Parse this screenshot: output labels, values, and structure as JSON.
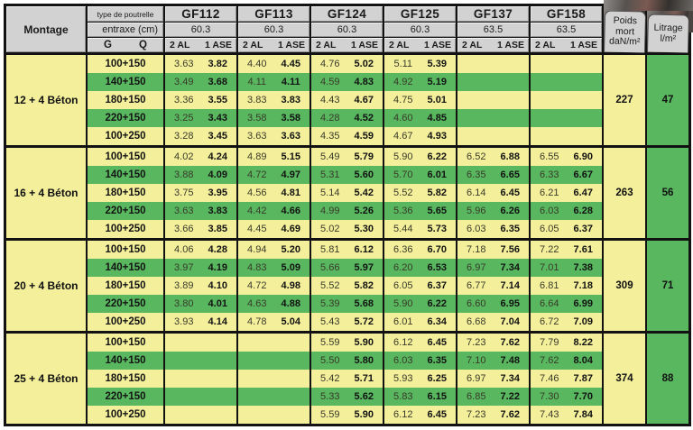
{
  "colors": {
    "row_yellow": "#f3ef9b",
    "row_green": "#58b75f",
    "header_gray": "#d2d2d2",
    "border_black": "#121212"
  },
  "header": {
    "montage": "Montage",
    "type_label": "type de poutrelle",
    "entraxe_label": "entraxe (cm)",
    "g": "G",
    "q": "Q",
    "col_2al": "2 AL",
    "col_1ase": "1 ASE",
    "groups": [
      {
        "name": "GF112",
        "entraxe": "60.3"
      },
      {
        "name": "GF113",
        "entraxe": "60.3"
      },
      {
        "name": "GF124",
        "entraxe": "60.3"
      },
      {
        "name": "GF125",
        "entraxe": "60.3"
      },
      {
        "name": "GF137",
        "entraxe": "63.5"
      },
      {
        "name": "GF158",
        "entraxe": "63.5"
      }
    ],
    "poids_lines": [
      "Poids",
      "mort",
      "daN/m²"
    ],
    "litrage_lines": [
      "Litrage",
      "l/m²"
    ]
  },
  "blocks": [
    {
      "montage": "12 + 4 Béton",
      "poids": "227",
      "litrage": "47",
      "rows": [
        {
          "label": "100+150",
          "cells": [
            [
              "3.63",
              "3.82"
            ],
            [
              "4.40",
              "4.45"
            ],
            [
              "4.76",
              "5.02"
            ],
            [
              "5.11",
              "5.39"
            ],
            null,
            null
          ]
        },
        {
          "label": "140+150",
          "cells": [
            [
              "3.49",
              "3.68"
            ],
            [
              "4.11",
              "4.11"
            ],
            [
              "4.59",
              "4.83"
            ],
            [
              "4.92",
              "5.19"
            ],
            null,
            null
          ]
        },
        {
          "label": "180+150",
          "cells": [
            [
              "3.36",
              "3.55"
            ],
            [
              "3.83",
              "3.83"
            ],
            [
              "4.43",
              "4.67"
            ],
            [
              "4.75",
              "5.01"
            ],
            null,
            null
          ]
        },
        {
          "label": "220+150",
          "cells": [
            [
              "3.25",
              "3.43"
            ],
            [
              "3.58",
              "3.58"
            ],
            [
              "4.28",
              "4.52"
            ],
            [
              "4.60",
              "4.85"
            ],
            null,
            null
          ]
        },
        {
          "label": "100+250",
          "cells": [
            [
              "3.28",
              "3.45"
            ],
            [
              "3.63",
              "3.63"
            ],
            [
              "4.35",
              "4.59"
            ],
            [
              "4.67",
              "4.93"
            ],
            null,
            null
          ]
        }
      ]
    },
    {
      "montage": "16 + 4 Béton",
      "poids": "263",
      "litrage": "56",
      "rows": [
        {
          "label": "100+150",
          "cells": [
            [
              "4.02",
              "4.24"
            ],
            [
              "4.89",
              "5.15"
            ],
            [
              "5.49",
              "5.79"
            ],
            [
              "5.90",
              "6.22"
            ],
            [
              "6.52",
              "6.88"
            ],
            [
              "6.55",
              "6.90"
            ]
          ]
        },
        {
          "label": "140+150",
          "cells": [
            [
              "3.88",
              "4.09"
            ],
            [
              "4.72",
              "4.97"
            ],
            [
              "5.31",
              "5.60"
            ],
            [
              "5.70",
              "6.01"
            ],
            [
              "6.35",
              "6.65"
            ],
            [
              "6.33",
              "6.67"
            ]
          ]
        },
        {
          "label": "180+150",
          "cells": [
            [
              "3.75",
              "3.95"
            ],
            [
              "4.56",
              "4.81"
            ],
            [
              "5.14",
              "5.42"
            ],
            [
              "5.52",
              "5.82"
            ],
            [
              "6.14",
              "6.45"
            ],
            [
              "6.21",
              "6.47"
            ]
          ]
        },
        {
          "label": "220+150",
          "cells": [
            [
              "3.63",
              "3.83"
            ],
            [
              "4.42",
              "4.66"
            ],
            [
              "4.99",
              "5.26"
            ],
            [
              "5.36",
              "5.65"
            ],
            [
              "5.96",
              "6.26"
            ],
            [
              "6.03",
              "6.28"
            ]
          ]
        },
        {
          "label": "100+250",
          "cells": [
            [
              "3.66",
              "3.85"
            ],
            [
              "4.45",
              "4.69"
            ],
            [
              "5.02",
              "5.30"
            ],
            [
              "5.44",
              "5.73"
            ],
            [
              "6.03",
              "6.35"
            ],
            [
              "6.05",
              "6.37"
            ]
          ]
        }
      ]
    },
    {
      "montage": "20 + 4 Béton",
      "poids": "309",
      "litrage": "71",
      "rows": [
        {
          "label": "100+150",
          "cells": [
            [
              "4.06",
              "4.28"
            ],
            [
              "4.94",
              "5.20"
            ],
            [
              "5.81",
              "6.12"
            ],
            [
              "6.36",
              "6.70"
            ],
            [
              "7.18",
              "7.56"
            ],
            [
              "7.22",
              "7.61"
            ]
          ]
        },
        {
          "label": "140+150",
          "cells": [
            [
              "3.97",
              "4.19"
            ],
            [
              "4.83",
              "5.09"
            ],
            [
              "5.66",
              "5.97"
            ],
            [
              "6.20",
              "6.53"
            ],
            [
              "6.97",
              "7.34"
            ],
            [
              "7.01",
              "7.38"
            ]
          ]
        },
        {
          "label": "180+150",
          "cells": [
            [
              "3.89",
              "4.10"
            ],
            [
              "4.72",
              "4.98"
            ],
            [
              "5.52",
              "5.82"
            ],
            [
              "6.05",
              "6.37"
            ],
            [
              "6.77",
              "7.14"
            ],
            [
              "6.81",
              "7.18"
            ]
          ]
        },
        {
          "label": "220+150",
          "cells": [
            [
              "3.80",
              "4.01"
            ],
            [
              "4.63",
              "4.88"
            ],
            [
              "5.39",
              "5.68"
            ],
            [
              "5.90",
              "6.22"
            ],
            [
              "6.60",
              "6.95"
            ],
            [
              "6.64",
              "6.99"
            ]
          ]
        },
        {
          "label": "100+250",
          "cells": [
            [
              "3.93",
              "4.14"
            ],
            [
              "4.78",
              "5.04"
            ],
            [
              "5.43",
              "5.72"
            ],
            [
              "6.01",
              "6.34"
            ],
            [
              "6.68",
              "7.04"
            ],
            [
              "6.72",
              "7.09"
            ]
          ]
        }
      ]
    },
    {
      "montage": "25 + 4 Béton",
      "poids": "374",
      "litrage": "88",
      "rows": [
        {
          "label": "100+150",
          "cells": [
            null,
            null,
            [
              "5.59",
              "5.90"
            ],
            [
              "6.12",
              "6.45"
            ],
            [
              "7.23",
              "7.62"
            ],
            [
              "7.79",
              "8.22"
            ]
          ]
        },
        {
          "label": "140+150",
          "cells": [
            null,
            null,
            [
              "5.50",
              "5.80"
            ],
            [
              "6.03",
              "6.35"
            ],
            [
              "7.10",
              "7.48"
            ],
            [
              "7.62",
              "8.04"
            ]
          ]
        },
        {
          "label": "180+150",
          "cells": [
            null,
            null,
            [
              "5.42",
              "5.71"
            ],
            [
              "5.93",
              "6.25"
            ],
            [
              "6.97",
              "7.34"
            ],
            [
              "7.46",
              "7.87"
            ]
          ]
        },
        {
          "label": "220+150",
          "cells": [
            null,
            null,
            [
              "5.33",
              "5.62"
            ],
            [
              "5.83",
              "6.15"
            ],
            [
              "6.85",
              "7.22"
            ],
            [
              "7.30",
              "7.70"
            ]
          ]
        },
        {
          "label": "100+250",
          "cells": [
            null,
            null,
            [
              "5.59",
              "5.90"
            ],
            [
              "6.12",
              "6.45"
            ],
            [
              "7.23",
              "7.62"
            ],
            [
              "7.43",
              "7.84"
            ]
          ]
        }
      ]
    }
  ]
}
